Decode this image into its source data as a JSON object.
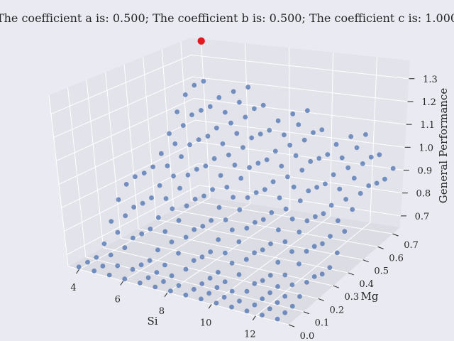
{
  "chart_data": {
    "type": "scatter",
    "projection": "3d",
    "title": "The coefficient a is: 0.500; The coefficient b is: 0.500; The coefficient c is: 1.000",
    "xlabel": "Si",
    "ylabel": "Mg",
    "zlabel": "General Performance",
    "xticks": [
      "4",
      "6",
      "8",
      "10",
      "12"
    ],
    "yticks": [
      "0.0",
      "0.1",
      "0.2",
      "0.3",
      "0.4",
      "0.5",
      "0.6",
      "0.7"
    ],
    "zticks": [
      "0.7",
      "0.8",
      "0.9",
      "1.0",
      "1.1",
      "1.2",
      "1.3"
    ],
    "xlim": [
      3.5,
      13.5
    ],
    "ylim": [
      0.0,
      0.75
    ],
    "zlim": [
      0.65,
      1.38
    ],
    "grid": true,
    "series": [
      {
        "color": "#4c72b0",
        "grid_x": [
          4,
          13
        ],
        "grid_y": [
          0.0,
          0.75
        ],
        "surface": "general_performance"
      },
      {
        "color": "#e31a1c",
        "points": [
          [
            4,
            0.75,
            1.37
          ]
        ]
      }
    ]
  }
}
